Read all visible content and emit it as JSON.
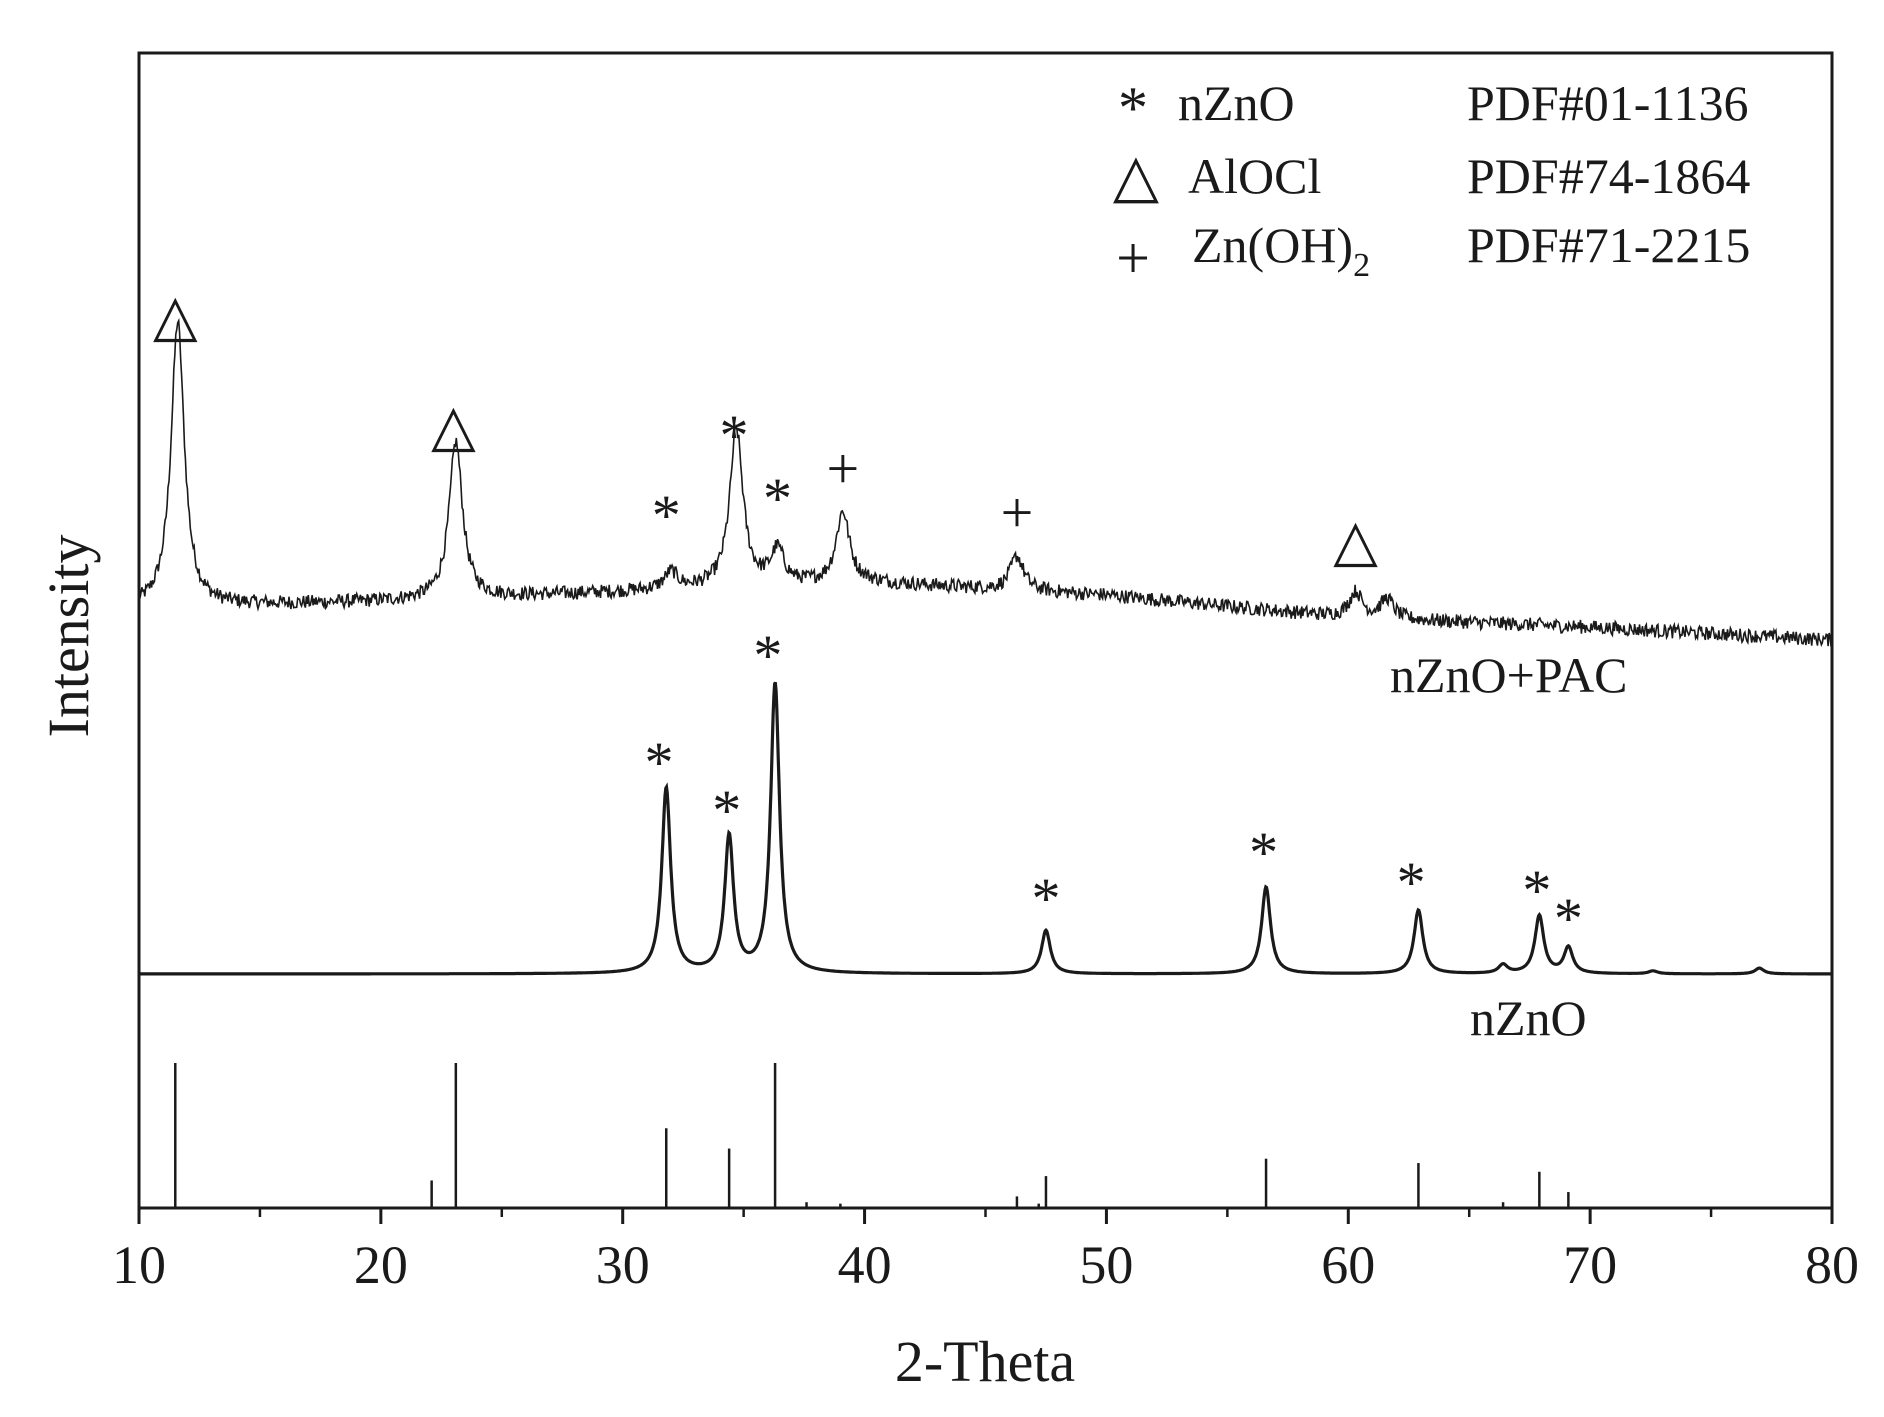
{
  "chart_data": {
    "type": "line",
    "xlabel": "2-Theta",
    "ylabel": "Intensity",
    "xlim": [
      10,
      80
    ],
    "x_ticks": [
      10,
      20,
      30,
      40,
      50,
      60,
      70,
      80
    ],
    "grid": false,
    "legend": {
      "placement": "top-right",
      "entries": [
        {
          "symbol": "*",
          "phase": "nZnO",
          "card": "PDF#01-1136"
        },
        {
          "symbol": "△",
          "phase": "AlOCl",
          "card": "PDF#74-1864"
        },
        {
          "symbol": "+",
          "phase": "Zn(OH)",
          "phase_subscript": "2",
          "card": "PDF#71-2215"
        }
      ]
    },
    "series": [
      {
        "name": "nZnO+PAC",
        "color": "#1a1a1a",
        "label_color": "#1a1aff",
        "baseline": [
          [
            10,
            0.1
          ],
          [
            20,
            0.12
          ],
          [
            30,
            0.15
          ],
          [
            40,
            0.18
          ],
          [
            50,
            0.14
          ],
          [
            60,
            0.07
          ],
          [
            70,
            0.04
          ],
          [
            80,
            0.0
          ]
        ],
        "peaks": [
          {
            "x": 11.6,
            "height": 1.0
          },
          {
            "x": 23.1,
            "height": 0.55
          },
          {
            "x": 32.0,
            "height": 0.06
          },
          {
            "x": 34.7,
            "height": 0.55
          },
          {
            "x": 36.4,
            "height": 0.12
          },
          {
            "x": 39.1,
            "height": 0.25
          },
          {
            "x": 46.3,
            "height": 0.12
          },
          {
            "x": 60.3,
            "height": 0.09
          },
          {
            "x": 61.6,
            "height": 0.07
          }
        ],
        "markers": [
          {
            "x": 11.5,
            "symbol": "△"
          },
          {
            "x": 23.0,
            "symbol": "△"
          },
          {
            "x": 31.8,
            "symbol": "*"
          },
          {
            "x": 34.6,
            "symbol": "*"
          },
          {
            "x": 36.4,
            "symbol": "*"
          },
          {
            "x": 39.1,
            "symbol": "+"
          },
          {
            "x": 46.3,
            "symbol": "+"
          },
          {
            "x": 60.3,
            "symbol": "△"
          }
        ]
      },
      {
        "name": "nZnO",
        "color": "#1a1a1a",
        "label_color": "#1a1aff",
        "peaks": [
          {
            "x": 31.8,
            "height": 0.64
          },
          {
            "x": 34.4,
            "height": 0.47
          },
          {
            "x": 36.3,
            "height": 1.0
          },
          {
            "x": 47.5,
            "height": 0.15
          },
          {
            "x": 56.6,
            "height": 0.3
          },
          {
            "x": 62.9,
            "height": 0.22
          },
          {
            "x": 66.4,
            "height": 0.03
          },
          {
            "x": 67.9,
            "height": 0.2
          },
          {
            "x": 69.1,
            "height": 0.09
          },
          {
            "x": 72.6,
            "height": 0.01
          },
          {
            "x": 77.0,
            "height": 0.02
          }
        ],
        "markers": [
          {
            "x": 31.5,
            "symbol": "*"
          },
          {
            "x": 34.3,
            "symbol": "*"
          },
          {
            "x": 36.0,
            "symbol": "*"
          },
          {
            "x": 47.5,
            "symbol": "*"
          },
          {
            "x": 56.5,
            "symbol": "*"
          },
          {
            "x": 62.6,
            "symbol": "*"
          },
          {
            "x": 67.8,
            "symbol": "*"
          },
          {
            "x": 69.1,
            "symbol": "*"
          }
        ]
      }
    ],
    "reference_lines": [
      {
        "x": 11.5,
        "height": 1.0
      },
      {
        "x": 22.1,
        "height": 0.19
      },
      {
        "x": 23.1,
        "height": 1.0
      },
      {
        "x": 31.8,
        "height": 0.55
      },
      {
        "x": 34.4,
        "height": 0.41
      },
      {
        "x": 36.3,
        "height": 1.0
      },
      {
        "x": 37.6,
        "height": 0.04
      },
      {
        "x": 39.0,
        "height": 0.03
      },
      {
        "x": 46.3,
        "height": 0.08
      },
      {
        "x": 47.2,
        "height": 0.03
      },
      {
        "x": 47.5,
        "height": 0.22
      },
      {
        "x": 56.6,
        "height": 0.34
      },
      {
        "x": 62.9,
        "height": 0.31
      },
      {
        "x": 66.4,
        "height": 0.04
      },
      {
        "x": 67.9,
        "height": 0.25
      },
      {
        "x": 69.1,
        "height": 0.11
      },
      {
        "x": 72.5,
        "height": 0.01
      },
      {
        "x": 77.0,
        "height": 0.01
      }
    ]
  }
}
